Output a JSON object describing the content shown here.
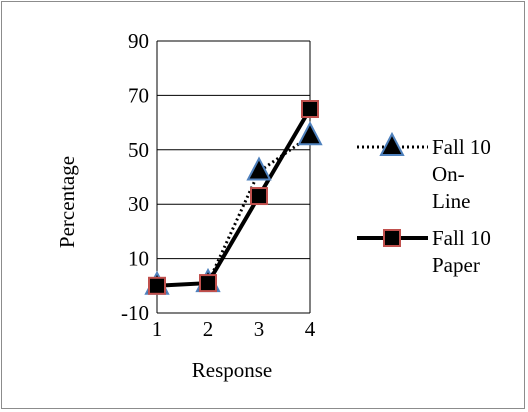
{
  "chart_data": {
    "type": "line",
    "title": "",
    "xlabel": "Response",
    "ylabel": "Percentage",
    "x": [
      1,
      2,
      3,
      4
    ],
    "ylim": [
      -10,
      90
    ],
    "yticks": [
      -10,
      10,
      30,
      50,
      70,
      90
    ],
    "grid": "horizontal",
    "legend_position": "right",
    "series": [
      {
        "name": "Fall 10 On-Line",
        "legend_lines": [
          "Fall 10",
          "On-",
          "Line"
        ],
        "values": [
          0,
          1,
          42,
          55
        ],
        "line_style": "dotted",
        "marker": "triangle",
        "marker_fill": "#000000",
        "marker_edge": "#4f81bd"
      },
      {
        "name": "Fall 10 Paper",
        "legend_lines": [
          "Fall 10",
          "Paper"
        ],
        "values": [
          0,
          1,
          33,
          65
        ],
        "line_style": "solid",
        "marker": "square",
        "marker_fill": "#000000",
        "marker_edge": "#c0504d"
      }
    ]
  }
}
